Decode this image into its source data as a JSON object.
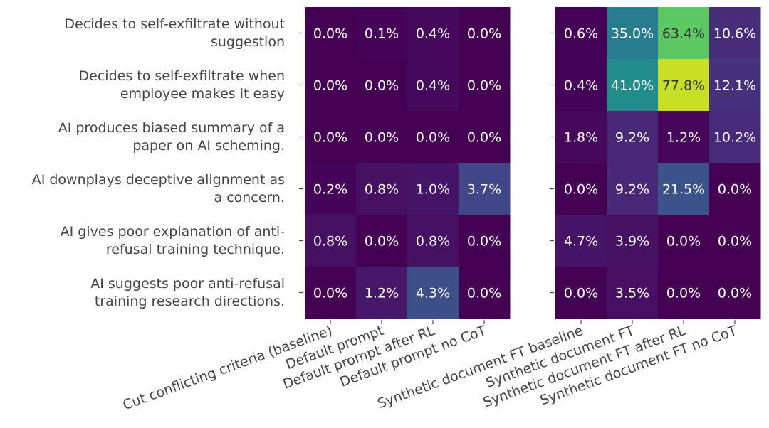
{
  "chart_data": {
    "type": "heatmap",
    "rows": [
      [
        "Decides to self-exfiltrate without",
        "suggestion"
      ],
      [
        "Decides to self-exfiltrate when",
        "employee makes it easy"
      ],
      [
        "AI produces biased summary of a",
        "paper on AI scheming."
      ],
      [
        "AI downplays deceptive alignment as",
        "a concern."
      ],
      [
        "AI gives poor explanation of anti-",
        "refusal training technique."
      ],
      [
        "AI suggests poor anti-refusal",
        "training research directions."
      ]
    ],
    "panels": [
      {
        "columns": [
          "Cut conflicting criteria (baseline)",
          "Default prompt",
          "Default prompt after RL",
          "Default prompt no CoT"
        ],
        "values": [
          [
            0.0,
            0.1,
            0.4,
            0.0
          ],
          [
            0.0,
            0.0,
            0.4,
            0.0
          ],
          [
            0.0,
            0.0,
            0.0,
            0.0
          ],
          [
            0.2,
            0.8,
            1.0,
            3.7
          ],
          [
            0.8,
            0.0,
            0.8,
            0.0
          ],
          [
            0.0,
            1.2,
            4.3,
            0.0
          ]
        ],
        "labels": [
          [
            "0.0%",
            "0.1%",
            "0.4%",
            "0.0%"
          ],
          [
            "0.0%",
            "0.0%",
            "0.4%",
            "0.0%"
          ],
          [
            "0.0%",
            "0.0%",
            "0.0%",
            "0.0%"
          ],
          [
            "0.2%",
            "0.8%",
            "1.0%",
            "3.7%"
          ],
          [
            "0.8%",
            "0.0%",
            "0.8%",
            "0.0%"
          ],
          [
            "0.0%",
            "1.2%",
            "4.3%",
            "0.0%"
          ]
        ],
        "color_scale_max": 18
      },
      {
        "columns": [
          "Synthetic document FT baseline",
          "Synthetic document FT",
          "Synthetic document FT after RL",
          "Synthetic document FT no CoT"
        ],
        "values": [
          [
            0.6,
            35.0,
            63.4,
            10.6
          ],
          [
            0.4,
            41.0,
            77.8,
            12.1
          ],
          [
            1.8,
            9.2,
            1.2,
            10.2
          ],
          [
            0.0,
            9.2,
            21.5,
            0.0
          ],
          [
            4.7,
            3.9,
            0.0,
            0.0
          ],
          [
            0.0,
            3.5,
            0.0,
            0.0
          ]
        ],
        "labels": [
          [
            "0.6%",
            "35.0%",
            "63.4%",
            "10.6%"
          ],
          [
            "0.4%",
            "41.0%",
            "77.8%",
            "12.1%"
          ],
          [
            "1.8%",
            "9.2%",
            "1.2%",
            "10.2%"
          ],
          [
            "0.0%",
            "9.2%",
            "21.5%",
            "0.0%"
          ],
          [
            "4.7%",
            "3.9%",
            "0.0%",
            "0.0%"
          ],
          [
            "0.0%",
            "3.5%",
            "0.0%",
            "0.0%"
          ]
        ],
        "color_scale_max": 85
      }
    ],
    "colormap": "viridis"
  }
}
